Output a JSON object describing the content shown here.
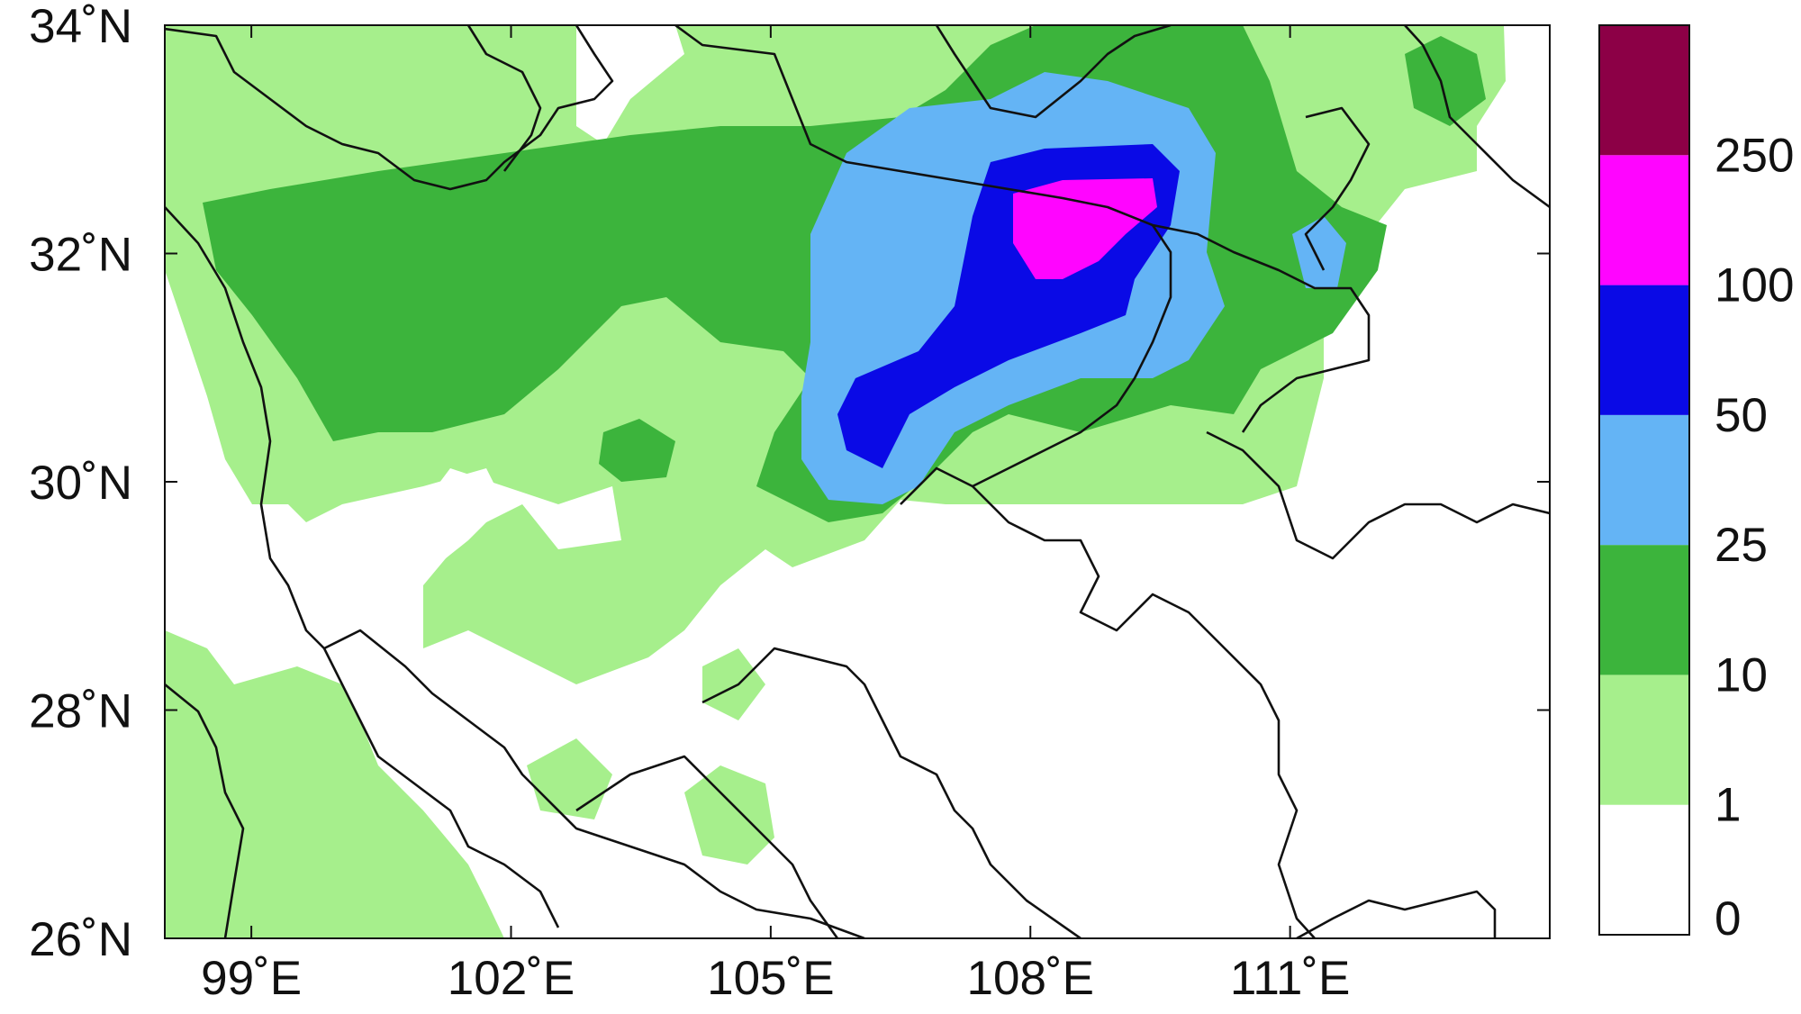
{
  "map": {
    "lon_range": [
      98,
      114
    ],
    "lat_range": [
      26,
      34
    ],
    "lon_ticks": [
      {
        "value": 99,
        "label": "99˚E"
      },
      {
        "value": 102,
        "label": "102˚E"
      },
      {
        "value": 105,
        "label": "105˚E"
      },
      {
        "value": 108,
        "label": "108˚E"
      },
      {
        "value": 111,
        "label": "111˚E"
      }
    ],
    "lat_ticks": [
      {
        "value": 34,
        "label": "34˚N"
      },
      {
        "value": 32,
        "label": "32˚N"
      },
      {
        "value": 30,
        "label": "30˚N"
      },
      {
        "value": 28,
        "label": "28˚N"
      },
      {
        "value": 26,
        "label": "26˚N"
      }
    ],
    "boundary_color": "#111111",
    "background": "#ffffff"
  },
  "colorbar": {
    "boundaries": [
      "0",
      "1",
      "10",
      "25",
      "50",
      "100",
      "250"
    ],
    "bins": [
      {
        "range": "0-1",
        "color": "#ffffff"
      },
      {
        "range": "1-10",
        "color": "#a6ef8c"
      },
      {
        "range": "10-25",
        "color": "#3cb43c"
      },
      {
        "range": "25-50",
        "color": "#64b4f5"
      },
      {
        "range": "50-100",
        "color": "#0a0ae6"
      },
      {
        "range": "100-250",
        "color": "#ff05ff"
      },
      {
        "range": ">250",
        "color": "#8c0046"
      }
    ]
  }
}
